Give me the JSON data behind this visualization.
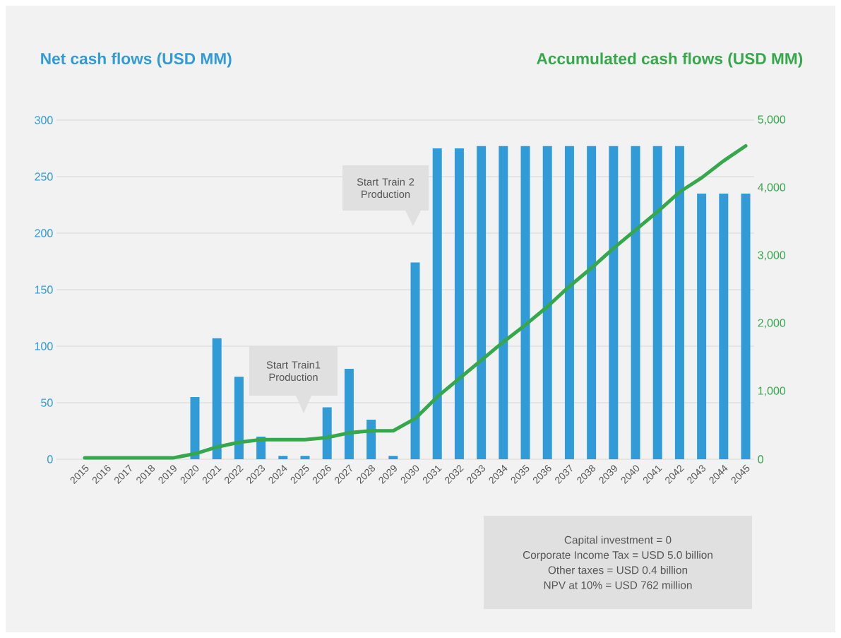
{
  "chart_data": {
    "type": "bar",
    "ylabel": "Net cash flows (USD MM)",
    "y2label": "Accumulated cash flows (USD MM)",
    "categories": [
      "2015",
      "2016",
      "2017",
      "2018",
      "2019",
      "2020",
      "2021",
      "2022",
      "2023",
      "2024",
      "2025",
      "2026",
      "2027",
      "2028",
      "2029",
      "2030",
      "2031",
      "2032",
      "2033",
      "2034",
      "2035",
      "2036",
      "2037",
      "2038",
      "2039",
      "2040",
      "2041",
      "2042",
      "2043",
      "2044",
      "2045"
    ],
    "series": [
      {
        "color": "#319bd7",
        "values": [
          0,
          0,
          0,
          0,
          0,
          55,
          107,
          73,
          20,
          3,
          3,
          46,
          80,
          35,
          3,
          174,
          275,
          275,
          277,
          277,
          277,
          277,
          277,
          277,
          277,
          277,
          277,
          277,
          235,
          235,
          235
        ]
      },
      {
        "type": "line",
        "axis": "y2",
        "color": "#34a84a",
        "values": [
          20,
          20,
          20,
          20,
          20,
          80,
          180,
          250,
          290,
          290,
          290,
          320,
          390,
          420,
          420,
          600,
          920,
          1190,
          1460,
          1730,
          1980,
          2250,
          2550,
          2820,
          3110,
          3380,
          3650,
          3940,
          4150,
          4400,
          4620
        ]
      }
    ],
    "ylim": [
      0,
      300
    ],
    "yticks": [
      0,
      50,
      100,
      150,
      200,
      250,
      300
    ],
    "y2lim": [
      0,
      5000
    ],
    "y2ticks": [
      0,
      {
        "value": 1000,
        "label": "1,000"
      },
      {
        "value": 2000,
        "label": "2,000"
      },
      {
        "value": 3000,
        "label": "3,000"
      },
      {
        "value": 4000,
        "label": "4,000"
      },
      {
        "value": 5000,
        "label": "5,000"
      }
    ],
    "grid": "y",
    "marker": "none",
    "line_style": "solid",
    "annotations": [
      "Start Train1 Production",
      "Start Train 2 Production",
      "Capital investment = 0",
      "Corporate Income Tax = USD 5.0 billion",
      "Other taxes = USD 0.4 billion",
      "NPV at 10% = USD 762 million"
    ]
  }
}
